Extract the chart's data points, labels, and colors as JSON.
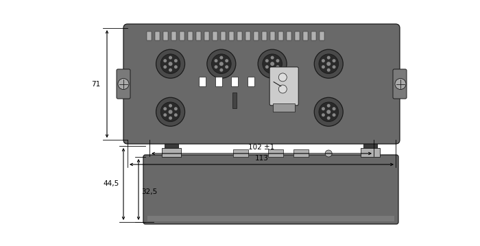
{
  "bg_color": "#ffffff",
  "device_color": "#696969",
  "device_color2": "#7a7a7a",
  "connector_dark": "#3a3a3a",
  "connector_light": "#b0b0b0",
  "outline_color": "#1a1a1a",
  "dim_color": "#000000",
  "side_view": {
    "label_445": "44,5",
    "label_325": "32,5"
  },
  "front_view": {
    "label_71": "71",
    "label_102": "102 ±1",
    "label_113": "113"
  }
}
